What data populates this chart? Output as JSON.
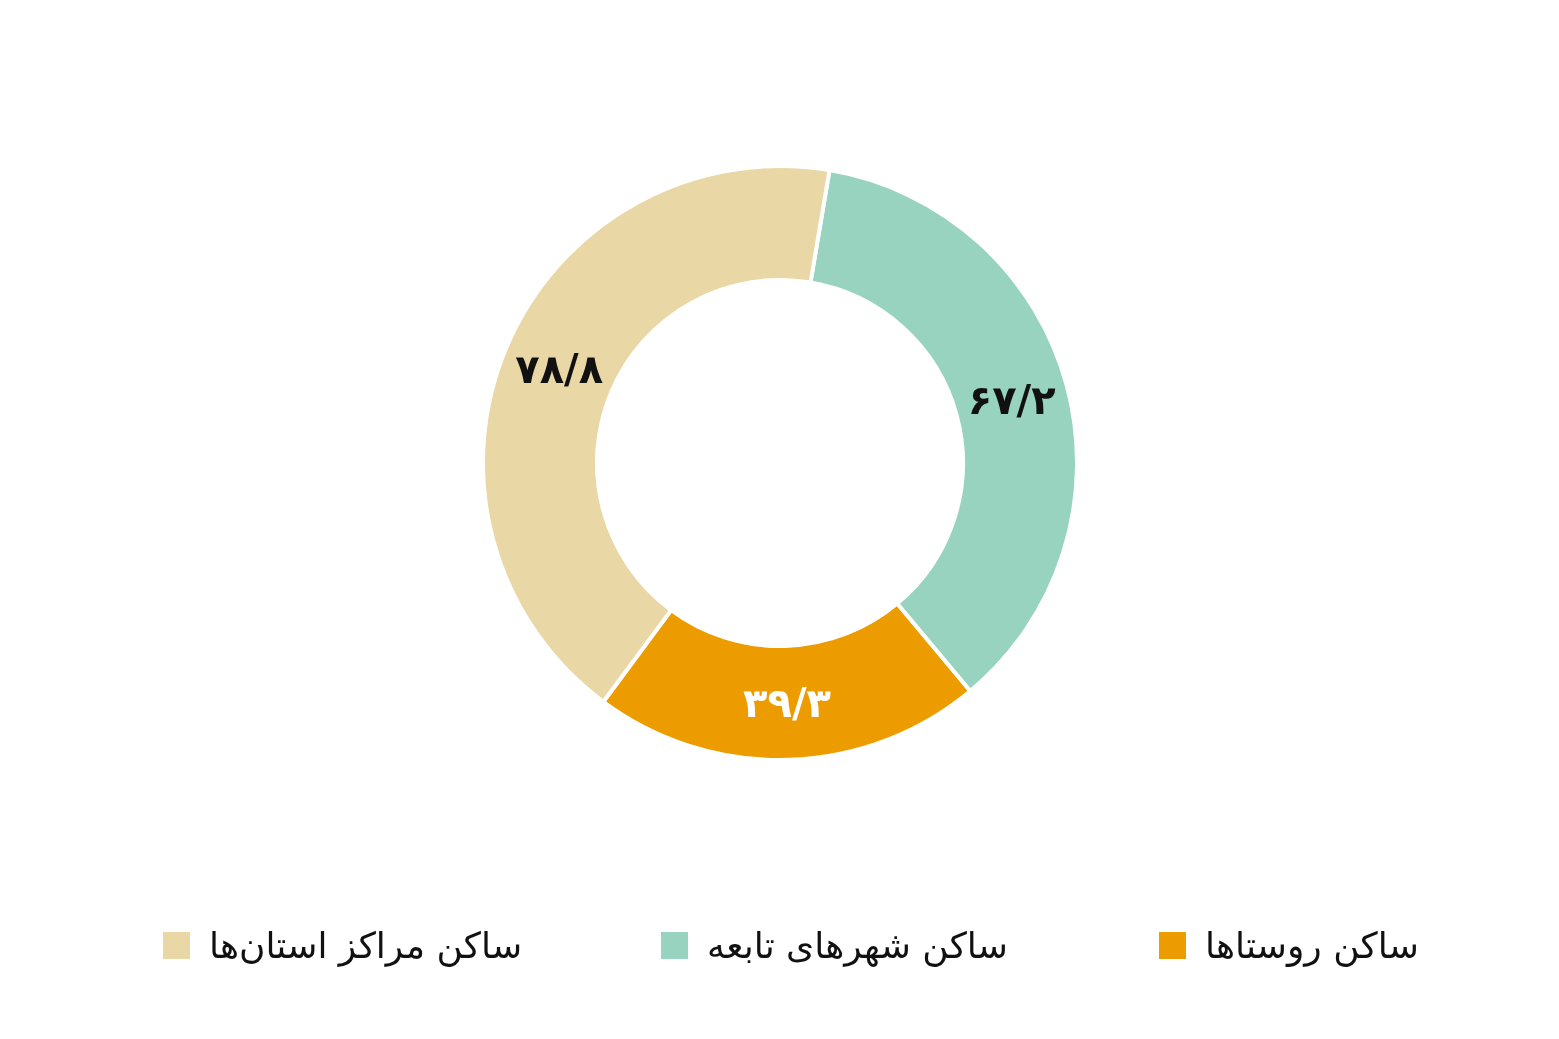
{
  "chart_data": {
    "type": "donut",
    "categories": [
      "ساکن روستاها",
      "ساکن شهرهای تابعه",
      "ساکن مراکز استان‌ها"
    ],
    "values": [
      39.3,
      67.2,
      78.8
    ],
    "colors": [
      "#ed9c00",
      "#97d3bf",
      "#e9d8a6"
    ],
    "value_labels": [
      "۳۹/۳",
      "۶۷/۲",
      "۷۸/۸"
    ],
    "legend": "bottom"
  }
}
